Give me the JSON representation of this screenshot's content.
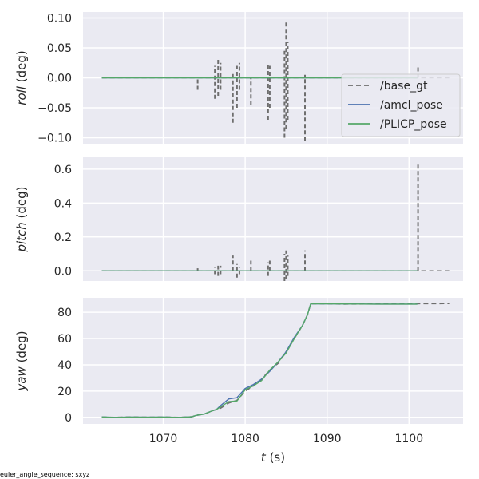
{
  "colors": {
    "panel_bg": "#eaeaf2",
    "grid": "#ffffff",
    "base_gt": "#6e6e6e",
    "amcl_pose": "#4c72b0",
    "PLICP_pose": "#55a868"
  },
  "footer": "euler_angle_sequence: sxyz",
  "chart_data": [
    {
      "type": "line",
      "ylabel_var": "roll",
      "ylabel_unit": " (deg)",
      "xlim": [
        1060.2,
        1106.6
      ],
      "ylim": [
        -0.11,
        0.11
      ],
      "xticks": [
        1070,
        1080,
        1090,
        1100
      ],
      "yticks": [
        -0.1,
        -0.05,
        0.0,
        0.05,
        0.1
      ],
      "ytick_labels": [
        "−0.10",
        "−0.05",
        "0.00",
        "0.05",
        "0.10"
      ],
      "show_xtick_labels": false,
      "grid": true,
      "legend": {
        "placement": "right",
        "entries": [
          {
            "label": "/base_gt",
            "style": "dashed",
            "color": "#6e6e6e"
          },
          {
            "label": "/amcl_pose",
            "style": "solid",
            "color": "#4c72b0"
          },
          {
            "label": "/PLICP_pose",
            "style": "solid",
            "color": "#55a868"
          }
        ]
      },
      "series": [
        {
          "name": "/base_gt",
          "style": "dashed",
          "baseline": 0,
          "x_range": [
            1062.5,
            1105
          ],
          "spikes": [
            [
              1074.2,
              -0.02,
              0.0
            ],
            [
              1076.3,
              -0.035,
              0.02
            ],
            [
              1076.7,
              -0.03,
              0.03
            ],
            [
              1077.0,
              -0.02,
              0.025
            ],
            [
              1078.5,
              -0.075,
              0.01
            ],
            [
              1079.0,
              -0.05,
              0.02
            ],
            [
              1079.3,
              -0.02,
              0.025
            ],
            [
              1080.7,
              -0.045,
              0.0
            ],
            [
              1082.8,
              -0.07,
              0.025
            ],
            [
              1083.0,
              -0.05,
              0.02
            ],
            [
              1084.8,
              -0.1,
              0.045
            ],
            [
              1085.0,
              -0.085,
              0.095
            ],
            [
              1085.2,
              -0.07,
              0.06
            ],
            [
              1087.3,
              -0.105,
              0.005
            ],
            [
              1101.1,
              0.0,
              0.02
            ]
          ]
        },
        {
          "name": "/amcl_pose",
          "style": "solid",
          "points": [
            [
              1062.5,
              0.0
            ],
            [
              1101,
              0.0
            ]
          ]
        },
        {
          "name": "/PLICP_pose",
          "style": "solid",
          "points": [
            [
              1062.5,
              0.0
            ],
            [
              1101,
              0.0
            ]
          ]
        }
      ]
    },
    {
      "type": "line",
      "ylabel_var": "pitch",
      "ylabel_unit": " (deg)",
      "xlim": [
        1060.2,
        1106.6
      ],
      "ylim": [
        -0.06,
        0.67
      ],
      "xticks": [
        1070,
        1080,
        1090,
        1100
      ],
      "yticks": [
        0.0,
        0.2,
        0.4,
        0.6
      ],
      "ytick_labels": [
        "0.0",
        "0.2",
        "0.4",
        "0.6"
      ],
      "show_xtick_labels": false,
      "grid": true,
      "series": [
        {
          "name": "/base_gt",
          "style": "dashed",
          "baseline": 0,
          "x_range": [
            1062.5,
            1105
          ],
          "spikes": [
            [
              1074.2,
              0.0,
              0.015
            ],
            [
              1076.3,
              -0.02,
              0.02
            ],
            [
              1076.7,
              -0.03,
              0.03
            ],
            [
              1077.0,
              -0.02,
              0.03
            ],
            [
              1078.5,
              0.0,
              0.09
            ],
            [
              1079.0,
              -0.04,
              0.04
            ],
            [
              1079.3,
              -0.02,
              0.02
            ],
            [
              1080.7,
              0.0,
              0.06
            ],
            [
              1082.8,
              -0.03,
              0.05
            ],
            [
              1083.0,
              0.0,
              0.06
            ],
            [
              1084.8,
              -0.06,
              0.1
            ],
            [
              1085.0,
              -0.05,
              0.12
            ],
            [
              1085.2,
              -0.03,
              0.09
            ],
            [
              1087.3,
              0.0,
              0.12
            ],
            [
              1101.1,
              0.0,
              0.63
            ]
          ]
        },
        {
          "name": "/amcl_pose",
          "style": "solid",
          "points": [
            [
              1062.5,
              0.0
            ],
            [
              1101,
              0.0
            ]
          ]
        },
        {
          "name": "/PLICP_pose",
          "style": "solid",
          "points": [
            [
              1062.5,
              0.0
            ],
            [
              1101,
              0.0
            ]
          ]
        }
      ]
    },
    {
      "type": "line",
      "ylabel_var": "yaw",
      "ylabel_unit": " (deg)",
      "xlabel_var": "t",
      "xlabel_unit": " (s)",
      "xlim": [
        1060.2,
        1106.6
      ],
      "ylim": [
        -5,
        91
      ],
      "xticks": [
        1070,
        1080,
        1090,
        1100
      ],
      "xtick_labels": [
        "1070",
        "1080",
        "1090",
        "1100"
      ],
      "yticks": [
        0,
        20,
        40,
        60,
        80
      ],
      "ytick_labels": [
        "0",
        "20",
        "40",
        "60",
        "80"
      ],
      "show_xtick_labels": true,
      "grid": true,
      "series": [
        {
          "name": "/base_gt",
          "style": "dashed",
          "points": [
            [
              1062.5,
              0.3
            ],
            [
              1064,
              0.0
            ],
            [
              1066,
              0.3
            ],
            [
              1068,
              0.1
            ],
            [
              1070,
              0.2
            ],
            [
              1072,
              0.0
            ],
            [
              1073.5,
              0.4
            ],
            [
              1074,
              1.5
            ],
            [
              1075,
              2.5
            ],
            [
              1076,
              5
            ],
            [
              1076.5,
              6
            ],
            [
              1077,
              7
            ],
            [
              1078,
              11
            ],
            [
              1079,
              13
            ],
            [
              1080,
              20
            ],
            [
              1081,
              24
            ],
            [
              1082,
              29
            ],
            [
              1083,
              36
            ],
            [
              1084,
              41
            ],
            [
              1085,
              50
            ],
            [
              1086,
              60
            ],
            [
              1087,
              70
            ],
            [
              1087.6,
              78
            ],
            [
              1088,
              86.5
            ],
            [
              1090,
              86.4
            ],
            [
              1092,
              86.2
            ],
            [
              1095,
              86.3
            ],
            [
              1098,
              86.3
            ],
            [
              1101,
              86.5
            ],
            [
              1105,
              86.6
            ]
          ]
        },
        {
          "name": "/amcl_pose",
          "style": "solid",
          "points": [
            [
              1062.5,
              0.3
            ],
            [
              1064,
              0.0
            ],
            [
              1066,
              0.2
            ],
            [
              1068,
              0.1
            ],
            [
              1070,
              0.2
            ],
            [
              1072,
              0.0
            ],
            [
              1073.5,
              0.4
            ],
            [
              1074,
              1.5
            ],
            [
              1075,
              2.5
            ],
            [
              1076,
              5
            ],
            [
              1076.5,
              6
            ],
            [
              1077,
              9
            ],
            [
              1078,
              14
            ],
            [
              1079,
              15
            ],
            [
              1080,
              22
            ],
            [
              1081,
              25
            ],
            [
              1082,
              29
            ],
            [
              1083,
              35
            ],
            [
              1084,
              42
            ],
            [
              1085,
              50
            ],
            [
              1086,
              61
            ],
            [
              1087,
              70
            ],
            [
              1087.6,
              78
            ],
            [
              1088,
              86.5
            ],
            [
              1092,
              86.3
            ],
            [
              1096,
              86.2
            ],
            [
              1101,
              86.2
            ]
          ]
        },
        {
          "name": "/PLICP_pose",
          "style": "solid",
          "points": [
            [
              1062.5,
              0.3
            ],
            [
              1064,
              0.0
            ],
            [
              1066,
              0.2
            ],
            [
              1068,
              0.1
            ],
            [
              1070,
              0.2
            ],
            [
              1072,
              0.0
            ],
            [
              1073.5,
              0.4
            ],
            [
              1074,
              1.5
            ],
            [
              1075,
              2.5
            ],
            [
              1076,
              5
            ],
            [
              1076.5,
              6
            ],
            [
              1077,
              8
            ],
            [
              1078,
              12
            ],
            [
              1079,
              12.5
            ],
            [
              1080,
              21
            ],
            [
              1081,
              24
            ],
            [
              1082,
              28
            ],
            [
              1083,
              36
            ],
            [
              1084,
              42
            ],
            [
              1085,
              49
            ],
            [
              1086,
              60
            ],
            [
              1087,
              70
            ],
            [
              1087.6,
              78
            ],
            [
              1088,
              86.5
            ],
            [
              1092,
              86.3
            ],
            [
              1096,
              86.2
            ],
            [
              1101,
              86.2
            ]
          ]
        }
      ]
    }
  ]
}
